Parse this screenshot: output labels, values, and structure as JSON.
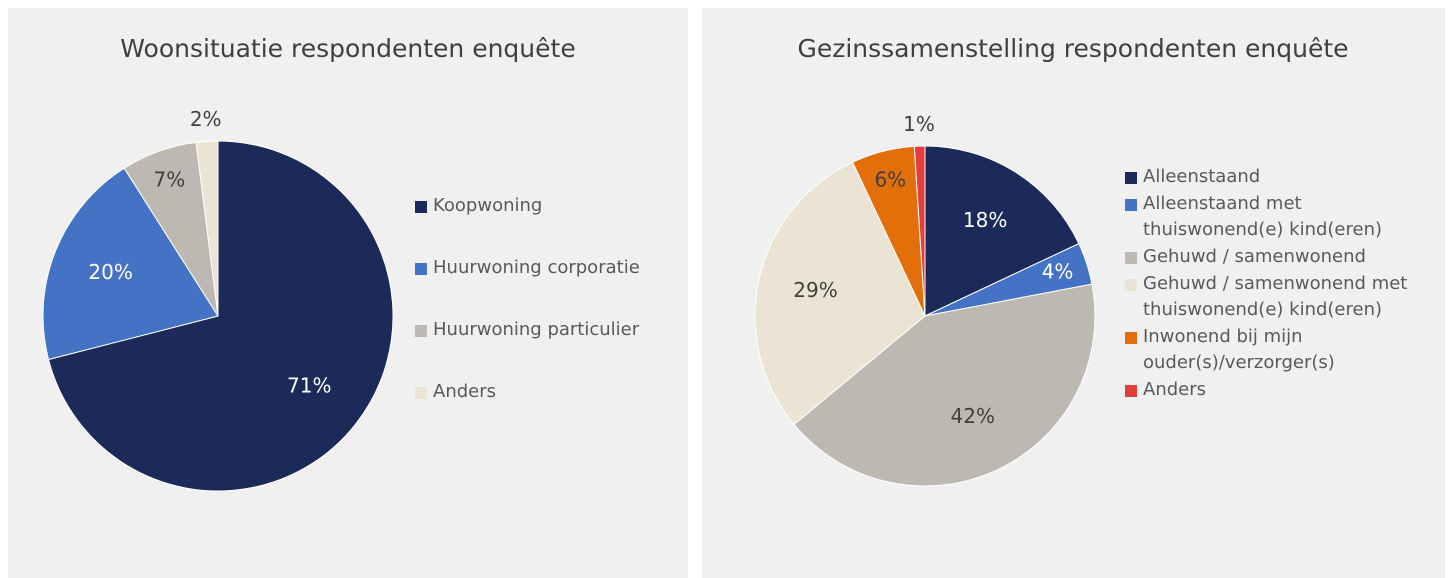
{
  "chart_data": [
    {
      "type": "pie",
      "title": "Woonsituatie respondenten enquête",
      "categories": [
        "Koopwoning",
        "Huurwoning corporatie",
        "Huurwoning particulier",
        "Anders"
      ],
      "values": [
        71,
        20,
        7,
        2
      ],
      "value_labels": [
        "71%",
        "20%",
        "7%",
        "2%"
      ],
      "colors": [
        "#1b2a59",
        "#4472c4",
        "#bdb8b2",
        "#ebe3d3"
      ]
    },
    {
      "type": "pie",
      "title": "Gezinssamenstelling respondenten enquête",
      "categories": [
        "Alleenstaand",
        "Alleenstaand met thuiswonend(e) kind(eren)",
        "Gehuwd / samenwonend",
        "Gehuwd / samenwonend met thuiswonend(e) kind(eren)",
        "Inwonend bij mijn ouder(s)/verzorger(s)",
        "Anders"
      ],
      "values": [
        18,
        4,
        42,
        29,
        6,
        1
      ],
      "value_labels": [
        "18%",
        "4%",
        "42%",
        "29%",
        "6%",
        "1%"
      ],
      "colors": [
        "#1b2a59",
        "#4472c4",
        "#bdb8b2",
        "#ebe3d3",
        "#e36f0a",
        "#e43d3d"
      ]
    }
  ]
}
